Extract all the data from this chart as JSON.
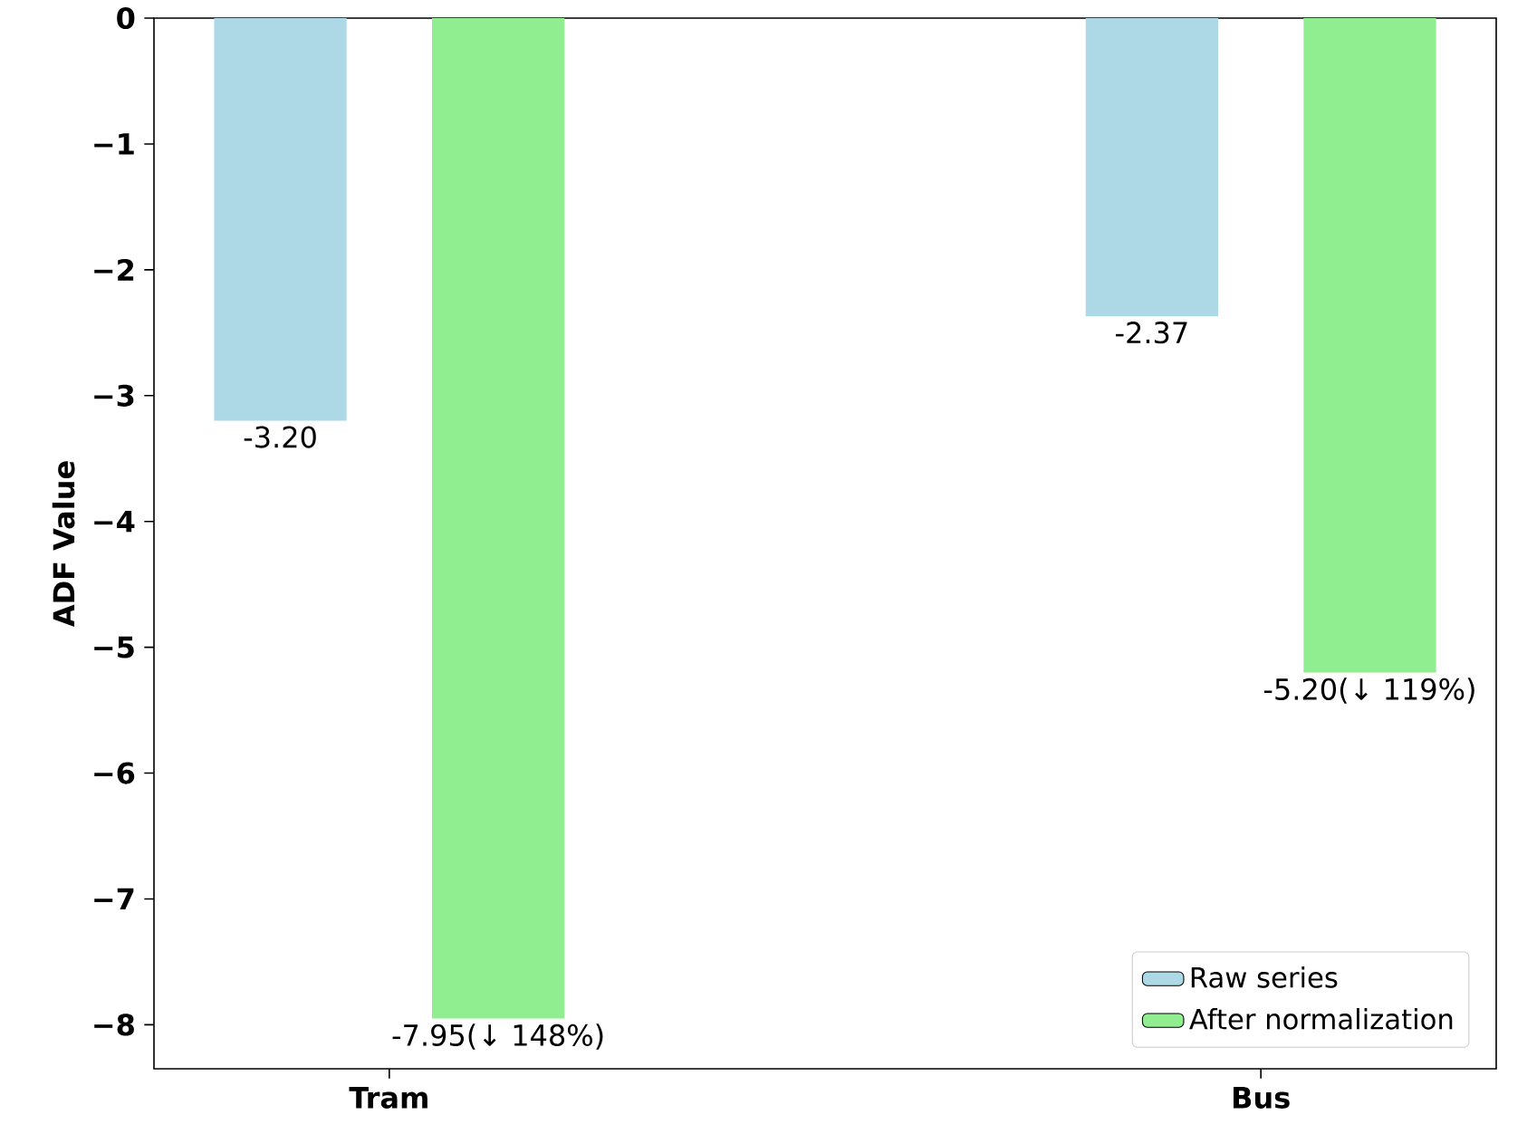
{
  "chart_data": {
    "type": "bar",
    "ylabel": "ADF Value",
    "categories": [
      "Tram",
      "Bus"
    ],
    "series": [
      {
        "name": "Raw series",
        "color": "#add8e6",
        "values": [
          -3.2,
          -2.37
        ],
        "value_labels": [
          "-3.20",
          "-2.37"
        ]
      },
      {
        "name": "After normalization",
        "color": "#90ee90",
        "values": [
          -7.95,
          -5.2
        ],
        "value_labels": [
          "-7.95(↓ 148%)",
          "-5.20(↓ 119%)"
        ]
      }
    ],
    "ylim": [
      -8.35,
      0
    ],
    "yticks": [
      {
        "value": -8,
        "label": "−8"
      },
      {
        "value": -7,
        "label": "−7"
      },
      {
        "value": -6,
        "label": "−6"
      },
      {
        "value": -5,
        "label": "−5"
      },
      {
        "value": -4,
        "label": "−4"
      },
      {
        "value": -3,
        "label": "−3"
      },
      {
        "value": -2,
        "label": "−2"
      },
      {
        "value": -1,
        "label": "−1"
      },
      {
        "value": 0,
        "label": "0"
      }
    ],
    "legend": "bottom right"
  }
}
